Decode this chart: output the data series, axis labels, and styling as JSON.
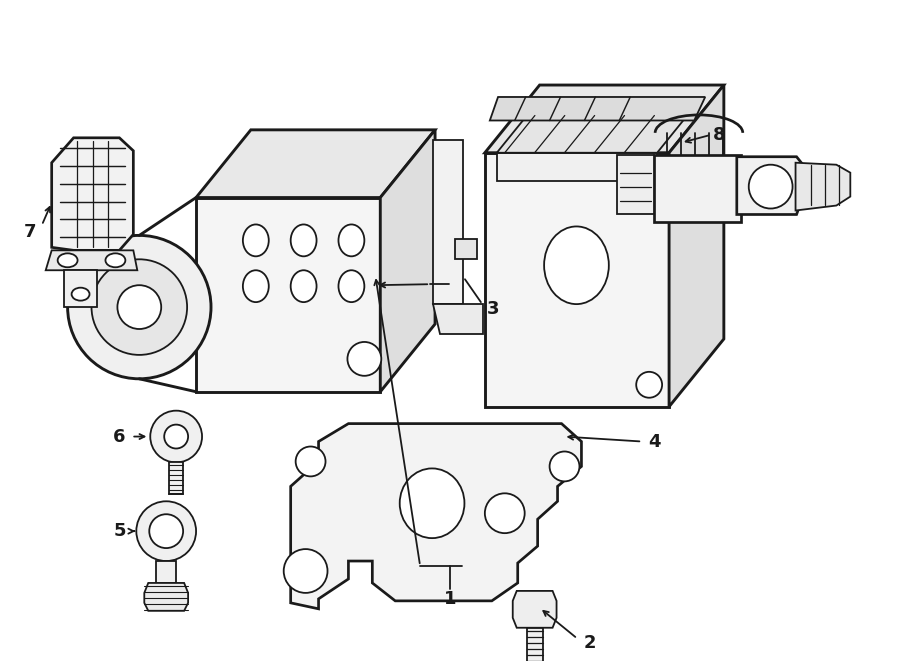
{
  "bg_color": "#ffffff",
  "line_color": "#1a1a1a",
  "line_width": 1.3,
  "fig_width": 9.0,
  "fig_height": 6.62,
  "dpi": 100
}
